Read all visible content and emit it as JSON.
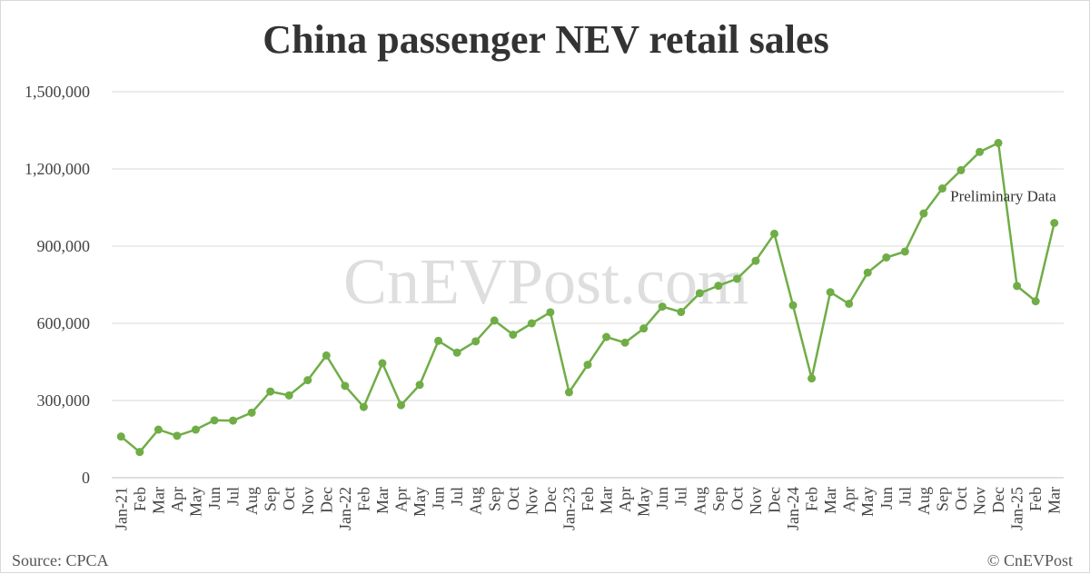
{
  "source_label": "Source: CPCA",
  "copyright_label": "© CnEVPost",
  "watermark": "CnEVPost.com",
  "chart_data": {
    "type": "line",
    "title": "China passenger NEV retail sales",
    "xlabel": "",
    "ylabel": "",
    "ylim": [
      0,
      1500000
    ],
    "y_ticks": [
      0,
      300000,
      600000,
      900000,
      1200000,
      1500000
    ],
    "y_tick_labels": [
      "0",
      "300,000",
      "600,000",
      "900,000",
      "1,200,000",
      "1,500,000"
    ],
    "grid": true,
    "line_color": "#70ad47",
    "categories": [
      "Jan-21",
      "Feb",
      "Mar",
      "Apr",
      "May",
      "Jun",
      "Jul",
      "Aug",
      "Sep",
      "Oct",
      "Nov",
      "Dec",
      "Jan-22",
      "Feb",
      "Mar",
      "Apr",
      "May",
      "Jun",
      "Jul",
      "Aug",
      "Sep",
      "Oct",
      "Nov",
      "Dec",
      "Jan-23",
      "Feb",
      "Mar",
      "Apr",
      "May",
      "Jun",
      "Jul",
      "Aug",
      "Sep",
      "Oct",
      "Nov",
      "Dec",
      "Jan-24",
      "Feb",
      "Mar",
      "Apr",
      "May",
      "Jun",
      "Jul",
      "Aug",
      "Sep",
      "Oct",
      "Nov",
      "Dec",
      "Jan-25",
      "Feb",
      "Mar"
    ],
    "series": [
      {
        "values": [
          160000,
          100000,
          187000,
          163000,
          187000,
          223000,
          222000,
          253000,
          335000,
          320000,
          379000,
          475000,
          357000,
          275000,
          445000,
          282000,
          361000,
          532000,
          486000,
          530000,
          611000,
          556000,
          600000,
          643000,
          332000,
          439000,
          547000,
          525000,
          580000,
          665000,
          644000,
          717000,
          746000,
          773000,
          843000,
          948000,
          670000,
          386000,
          721000,
          676000,
          797000,
          856000,
          879000,
          1027000,
          1124000,
          1195000,
          1266000,
          1301000,
          745000,
          686000,
          990000
        ]
      }
    ],
    "annotations": [
      {
        "text": "Preliminary Data",
        "category_index": 50
      }
    ]
  }
}
